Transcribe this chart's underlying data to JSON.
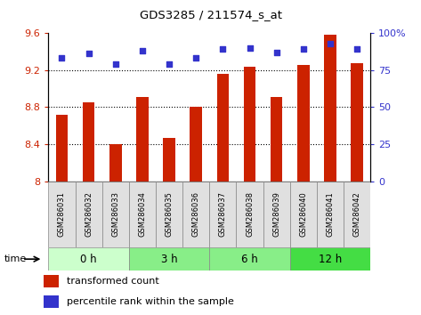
{
  "title": "GDS3285 / 211574_s_at",
  "samples": [
    "GSM286031",
    "GSM286032",
    "GSM286033",
    "GSM286034",
    "GSM286035",
    "GSM286036",
    "GSM286037",
    "GSM286038",
    "GSM286039",
    "GSM286040",
    "GSM286041",
    "GSM286042"
  ],
  "bar_values": [
    8.72,
    8.85,
    8.4,
    8.91,
    8.47,
    8.8,
    9.16,
    9.24,
    8.91,
    9.26,
    9.58,
    9.27
  ],
  "scatter_values": [
    83,
    86,
    79,
    88,
    79,
    83,
    89,
    90,
    87,
    89,
    93,
    89
  ],
  "bar_color": "#cc2200",
  "scatter_color": "#3333cc",
  "ylim_left": [
    8.0,
    9.6
  ],
  "ylim_right": [
    0,
    100
  ],
  "yticks_left": [
    8.0,
    8.4,
    8.8,
    9.2,
    9.6
  ],
  "ytick_labels_left": [
    "8",
    "8.4",
    "8.8",
    "9.2",
    "9.6"
  ],
  "yticks_right": [
    0,
    25,
    50,
    75,
    100
  ],
  "ytick_labels_right": [
    "0",
    "25",
    "50",
    "75",
    "100%"
  ],
  "grid_yticks": [
    8.4,
    8.8,
    9.2
  ],
  "group_labels": [
    "0 h",
    "3 h",
    "6 h",
    "12 h"
  ],
  "group_ranges": [
    [
      0,
      3
    ],
    [
      3,
      6
    ],
    [
      6,
      9
    ],
    [
      9,
      12
    ]
  ],
  "group_colors": [
    "#ccffcc",
    "#88ee88",
    "#88ee88",
    "#44dd44"
  ],
  "time_label": "time",
  "legend_bar_label": "transformed count",
  "legend_scatter_label": "percentile rank within the sample",
  "bar_width": 0.45
}
